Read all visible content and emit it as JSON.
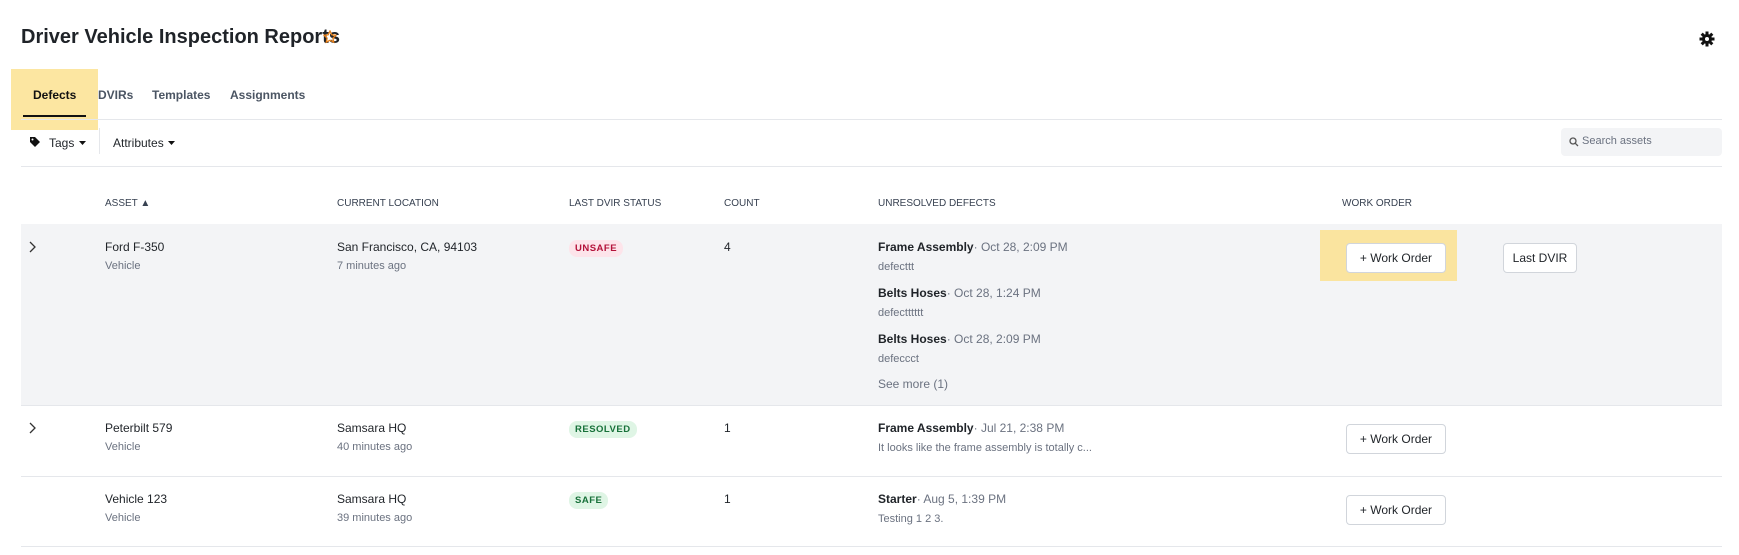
{
  "header": {
    "title": "Driver Vehicle Inspection Reports"
  },
  "tabs": [
    "Defects",
    "DVIRs",
    "Templates",
    "Assignments"
  ],
  "toolbar": {
    "tags": "Tags",
    "attributes": "Attributes",
    "search_placeholder": "Search assets"
  },
  "table": {
    "columns": [
      "ASSET ▲",
      "CURRENT LOCATION",
      "LAST DVIR STATUS",
      "COUNT",
      "UNRESOLVED DEFECTS",
      "WORK ORDER"
    ],
    "rows": [
      {
        "asset": "Ford F-350",
        "asset_type": "Vehicle",
        "location": "San Francisco, CA, 94103",
        "updated": "7 minutes ago",
        "status": "UNSAFE",
        "count": "4",
        "defects": [
          {
            "name": "Frame Assembly",
            "time": "· Oct 28, 2:09 PM",
            "note": "defecttt"
          },
          {
            "name": "Belts Hoses",
            "time": "· Oct 28, 1:24 PM",
            "note": "defectttttt"
          },
          {
            "name": "Belts Hoses",
            "time": "· Oct 28, 2:09 PM",
            "note": "defeccct"
          }
        ],
        "see_more": "See more (1)",
        "work_order": "+ Work Order",
        "last_dvir": "Last DVIR"
      },
      {
        "asset": "Peterbilt 579",
        "asset_type": "Vehicle",
        "location": "Samsara HQ",
        "updated": "40 minutes ago",
        "status": "RESOLVED",
        "count": "1",
        "defects": [
          {
            "name": "Frame Assembly",
            "time": "· Jul 21, 2:38 PM",
            "note": "It looks like the frame assembly is totally c..."
          }
        ],
        "work_order": "+ Work Order"
      },
      {
        "asset": "Vehicle 123",
        "asset_type": "Vehicle",
        "location": "Samsara HQ",
        "updated": "39 minutes ago",
        "status": "SAFE",
        "count": "1",
        "defects": [
          {
            "name": "Starter",
            "time": "· Aug 5, 1:39 PM",
            "note": "Testing 1 2 3."
          }
        ],
        "work_order": "+ Work Order"
      }
    ]
  }
}
